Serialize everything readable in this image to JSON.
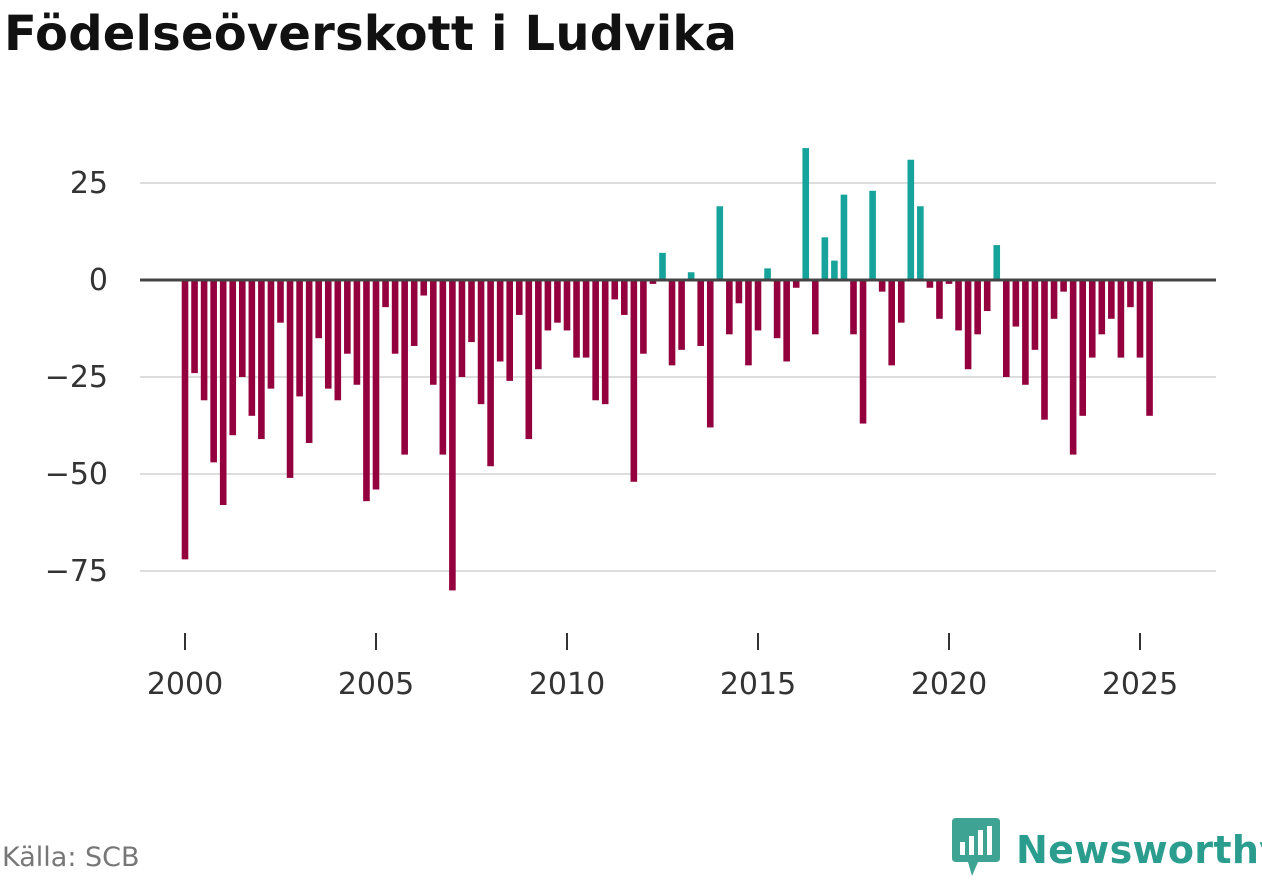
{
  "title": "Födelseöverskott i Ludvika",
  "source": "Källa: SCB",
  "brand": "Newsworthy",
  "brand_icon": "bar-chart-speech-bubble-icon",
  "colors": {
    "positive": "#16a39b",
    "negative": "#94003e",
    "grid": "#dddddd",
    "zero_line": "#444444",
    "axis_text": "#333333",
    "brand": "#2a9d8f"
  },
  "chart_data": {
    "type": "bar",
    "title": "Födelseöverskott i Ludvika",
    "xlabel": "",
    "ylabel": "",
    "x_start": 2000.0,
    "x_step": 0.25,
    "xticks": [
      2000,
      2005,
      2010,
      2015,
      2020,
      2025
    ],
    "xtick_labels": [
      "2000",
      "2005",
      "2010",
      "2015",
      "2020",
      "2025"
    ],
    "yticks": [
      25,
      0,
      -25,
      -50,
      -75
    ],
    "ytick_labels": [
      "25",
      "0",
      "−25",
      "−50",
      "−75"
    ],
    "ylim": [
      -80,
      35
    ],
    "values": [
      -72,
      -24,
      -31,
      -47,
      -58,
      -40,
      -25,
      -35,
      -41,
      -28,
      -11,
      -51,
      -30,
      -42,
      -15,
      -28,
      -31,
      -19,
      -27,
      -57,
      -54,
      -7,
      -19,
      -45,
      -17,
      -4,
      -27,
      -45,
      -80,
      -25,
      -16,
      -32,
      -48,
      -21,
      -26,
      -9,
      -41,
      -23,
      -13,
      -11,
      -13,
      -20,
      -20,
      -31,
      -32,
      -5,
      -9,
      -52,
      -19,
      -1,
      7,
      -22,
      -18,
      2,
      -17,
      -38,
      19,
      -14,
      -6,
      -22,
      -13,
      3,
      -15,
      -21,
      -2,
      34,
      -14,
      11,
      5,
      22,
      -14,
      -37,
      23,
      -3,
      -22,
      -11,
      31,
      19,
      -2,
      -10,
      -1,
      -13,
      -23,
      -14,
      -8,
      9,
      -25,
      -12,
      -27,
      -18,
      -36,
      -10,
      -3,
      -45,
      -35,
      -20,
      -14,
      -10,
      -20,
      -7,
      -20,
      -35
    ]
  }
}
